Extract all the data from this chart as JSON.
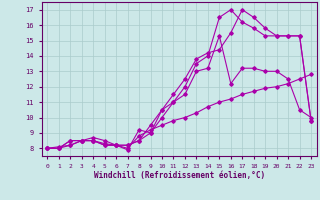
{
  "xlabel": "Windchill (Refroidissement éolien,°C)",
  "background_color": "#cce8e8",
  "grid_color": "#aacccc",
  "line_color": "#aa00aa",
  "xlim": [
    -0.5,
    23.5
  ],
  "ylim": [
    7.5,
    17.5
  ],
  "xticks": [
    0,
    1,
    2,
    3,
    4,
    5,
    6,
    7,
    8,
    9,
    10,
    11,
    12,
    13,
    14,
    15,
    16,
    17,
    18,
    19,
    20,
    21,
    22,
    23
  ],
  "yticks": [
    8,
    9,
    10,
    11,
    12,
    13,
    14,
    15,
    16,
    17
  ],
  "lines": [
    {
      "x": [
        0,
        1,
        2,
        3,
        4,
        5,
        6,
        7,
        8,
        9,
        10,
        11,
        12,
        13,
        14,
        15,
        16,
        17,
        18,
        19,
        20,
        21,
        22,
        23
      ],
      "y": [
        8,
        8,
        8.5,
        8.5,
        8.5,
        8.3,
        8.2,
        8.0,
        8.8,
        9.2,
        9.5,
        9.8,
        10.0,
        10.3,
        10.7,
        11.0,
        11.2,
        11.5,
        11.7,
        11.9,
        12.0,
        12.2,
        12.5,
        12.8
      ]
    },
    {
      "x": [
        0,
        1,
        2,
        3,
        4,
        5,
        6,
        7,
        8,
        9,
        10,
        11,
        12,
        13,
        14,
        15,
        16,
        17,
        18,
        19,
        20,
        21,
        22,
        23
      ],
      "y": [
        8,
        8,
        8.5,
        8.5,
        8.7,
        8.5,
        8.2,
        7.9,
        9.2,
        9.0,
        10.5,
        11.0,
        11.5,
        13.0,
        13.2,
        15.3,
        12.2,
        13.2,
        13.2,
        13.0,
        13.0,
        12.5,
        10.5,
        10.0
      ]
    },
    {
      "x": [
        0,
        1,
        2,
        3,
        4,
        5,
        6,
        7,
        8,
        9,
        10,
        11,
        12,
        13,
        14,
        15,
        16,
        17,
        18,
        19,
        20,
        21,
        22,
        23
      ],
      "y": [
        8,
        8.1,
        8.2,
        8.5,
        8.5,
        8.2,
        8.2,
        8.2,
        8.5,
        9.5,
        10.5,
        11.5,
        12.5,
        13.8,
        14.2,
        14.4,
        15.5,
        17.0,
        16.5,
        15.8,
        15.3,
        15.3,
        15.3,
        9.8
      ]
    },
    {
      "x": [
        0,
        1,
        2,
        3,
        4,
        5,
        6,
        7,
        8,
        9,
        10,
        11,
        12,
        13,
        14,
        15,
        16,
        17,
        18,
        19,
        20,
        21,
        22,
        23
      ],
      "y": [
        8,
        8,
        8.2,
        8.5,
        8.5,
        8.2,
        8.2,
        8.2,
        8.5,
        9.0,
        10.0,
        11.0,
        12.0,
        13.5,
        14.0,
        16.5,
        17.0,
        16.2,
        15.8,
        15.3,
        15.3,
        15.3,
        15.3,
        9.8
      ]
    }
  ]
}
